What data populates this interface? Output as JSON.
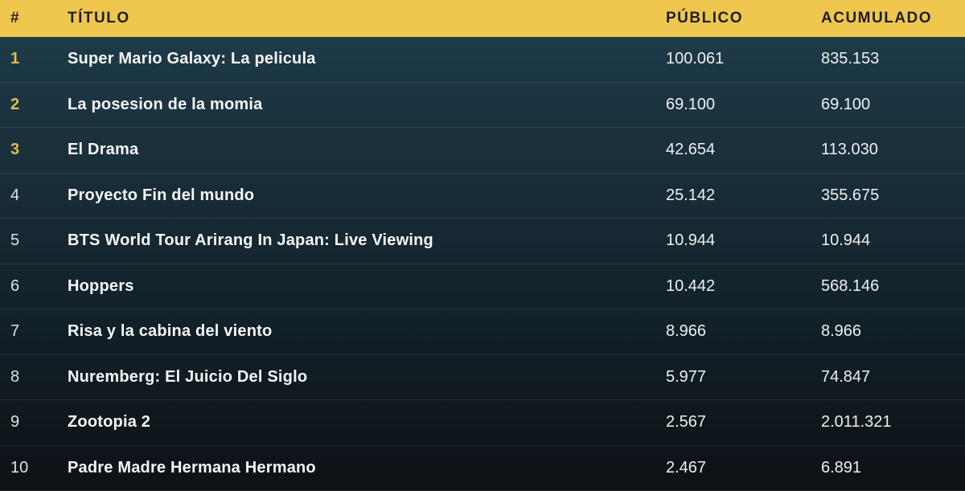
{
  "header": {
    "columns": [
      {
        "id": "rank",
        "label": "#"
      },
      {
        "id": "title",
        "label": "TÍTULO"
      },
      {
        "id": "publico",
        "label": "PÚBLICO"
      },
      {
        "id": "acumulado",
        "label": "ACUMULADO"
      }
    ]
  },
  "rows": [
    {
      "rank": "1",
      "title": "Super Mario Galaxy: La pelicula",
      "publico": "100.061",
      "acumulado": "835.153",
      "top3": true
    },
    {
      "rank": "2",
      "title": "La posesion de la momia",
      "publico": "69.100",
      "acumulado": "69.100",
      "top3": true
    },
    {
      "rank": "3",
      "title": "El Drama",
      "publico": "42.654",
      "acumulado": "113.030",
      "top3": true
    },
    {
      "rank": "4",
      "title": "Proyecto Fin del mundo",
      "publico": "25.142",
      "acumulado": "355.675",
      "top3": false
    },
    {
      "rank": "5",
      "title": "BTS World Tour Arirang In Japan: Live Viewing",
      "publico": "10.944",
      "acumulado": "10.944",
      "top3": false
    },
    {
      "rank": "6",
      "title": "Hoppers",
      "publico": "10.442",
      "acumulado": "568.146",
      "top3": false
    },
    {
      "rank": "7",
      "title": "Risa y la cabina del viento",
      "publico": "8.966",
      "acumulado": "8.966",
      "top3": false
    },
    {
      "rank": "8",
      "title": "Nuremberg: El Juicio Del Siglo",
      "publico": "5.977",
      "acumulado": "74.847",
      "top3": false
    },
    {
      "rank": "9",
      "title": "Zootopia 2",
      "publico": "2.567",
      "acumulado": "2.011.321",
      "top3": false
    },
    {
      "rank": "10",
      "title": "Padre Madre Hermana Hermano",
      "publico": "2.467",
      "acumulado": "6.891",
      "top3": false
    }
  ],
  "colors": {
    "header_bg": "#EFC74F",
    "header_text": "#201F18",
    "body_gradient_top": "#1E3A48",
    "body_gradient_bottom": "#0C1115",
    "rank_top3": "#E4BA4D",
    "rank_default": "#DCE2E5",
    "title_text": "#F4F6F7",
    "value_text": "#EDF0F2",
    "divider": "rgba(255,255,255,0.09)"
  },
  "chart_data": {
    "type": "table",
    "title": "",
    "columns": [
      "#",
      "TÍTULO",
      "PÚBLICO",
      "ACUMULADO"
    ],
    "rows": [
      [
        "1",
        "Super Mario Galaxy: La pelicula",
        "100.061",
        "835.153"
      ],
      [
        "2",
        "La posesion de la momia",
        "69.100",
        "69.100"
      ],
      [
        "3",
        "El Drama",
        "42.654",
        "113.030"
      ],
      [
        "4",
        "Proyecto Fin del mundo",
        "25.142",
        "355.675"
      ],
      [
        "5",
        "BTS World Tour Arirang In Japan: Live Viewing",
        "10.944",
        "10.944"
      ],
      [
        "6",
        "Hoppers",
        "10.442",
        "568.146"
      ],
      [
        "7",
        "Risa y la cabina del viento",
        "8.966",
        "8.966"
      ],
      [
        "8",
        "Nuremberg: El Juicio Del Siglo",
        "5.977",
        "74.847"
      ],
      [
        "9",
        "Zootopia 2",
        "2.567",
        "2.011.321"
      ],
      [
        "10",
        "Padre Madre Hermana Hermano",
        "2.467",
        "6.891"
      ]
    ],
    "publico_values": [
      100061,
      69100,
      42654,
      25142,
      10944,
      10442,
      8966,
      5977,
      2567,
      2467
    ],
    "acumulado_values": [
      835153,
      69100,
      113030,
      355675,
      10944,
      568146,
      8966,
      74847,
      2011321,
      6891
    ],
    "highlighted_ranks": [
      1,
      2,
      3
    ]
  }
}
